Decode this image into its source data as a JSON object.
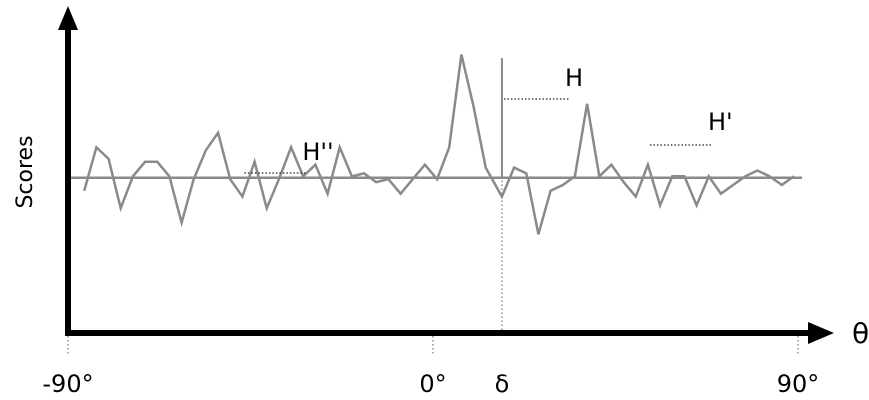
{
  "chart_data": {
    "type": "line",
    "title": "",
    "ylabel": "Scores",
    "xlabel": "θ",
    "xlim": [
      -90,
      90
    ],
    "ylim": [
      0,
      10
    ],
    "baseline": 5.25,
    "x_ticks": [
      {
        "value": -90,
        "label": "-90°"
      },
      {
        "value": 0,
        "label": "0°"
      },
      {
        "value": 17,
        "label": "δ"
      },
      {
        "value": 90,
        "label": "90°"
      }
    ],
    "delta_x": 17,
    "series": [
      {
        "x": [
          -86,
          -83,
          -80,
          -77,
          -74,
          -71,
          -68,
          -65,
          -62,
          -59,
          -56,
          -53,
          -50,
          -47,
          -44,
          -41,
          -38,
          -35,
          -32,
          -29,
          -26,
          -23,
          -20,
          -17,
          -14,
          -11,
          -8,
          -5,
          -2,
          1,
          4,
          7,
          10,
          13,
          17,
          20,
          23,
          26,
          29,
          32,
          35,
          38,
          41,
          44,
          47,
          50,
          53,
          56,
          59,
          62,
          65,
          68,
          71,
          74,
          77,
          80,
          83,
          86,
          89
        ],
        "y": [
          4.8,
          6.3,
          5.9,
          4.2,
          5.3,
          5.8,
          5.8,
          5.3,
          3.7,
          5.2,
          6.2,
          6.8,
          5.2,
          4.6,
          5.8,
          4.2,
          5.2,
          6.3,
          5.3,
          5.7,
          4.7,
          6.3,
          5.3,
          5.4,
          5.1,
          5.2,
          4.7,
          5.2,
          5.7,
          5.2,
          6.3,
          9.5,
          7.7,
          5.6,
          4.6,
          5.6,
          5.4,
          3.3,
          4.8,
          5.0,
          5.3,
          7.8,
          5.3,
          5.7,
          5.1,
          4.6,
          5.7,
          4.3,
          5.3,
          5.3,
          4.3,
          5.3,
          4.7,
          5.0,
          5.3,
          5.5,
          5.3,
          5.0,
          5.3
        ]
      }
    ],
    "annotations": [
      {
        "label": "H",
        "x": 17,
        "y": 9.5
      },
      {
        "label": "H'",
        "x": 53,
        "y": 7.8
      },
      {
        "label": "H''",
        "x": -47,
        "y": 6.8
      }
    ]
  }
}
